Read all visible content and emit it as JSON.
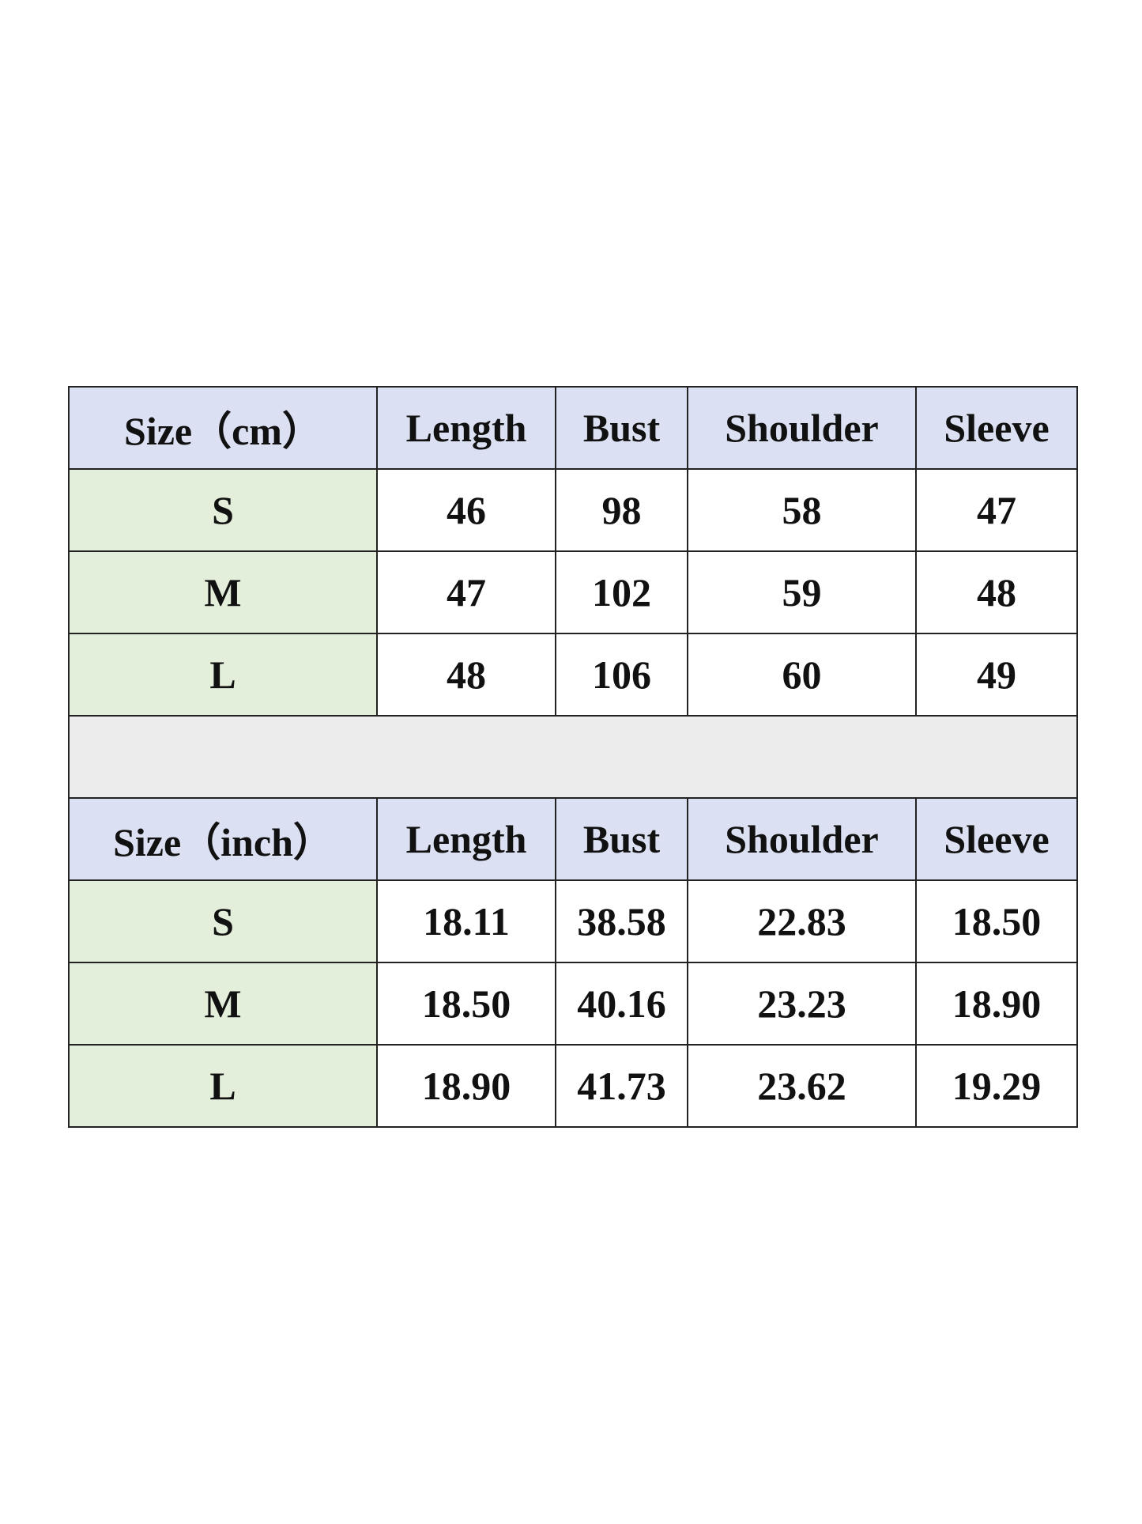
{
  "cm_table": {
    "headers": [
      "Size（cm）",
      "Length",
      "Bust",
      "Shoulder",
      "Sleeve"
    ],
    "rows": [
      [
        "S",
        "46",
        "98",
        "58",
        "47"
      ],
      [
        "M",
        "47",
        "102",
        "59",
        "48"
      ],
      [
        "L",
        "48",
        "106",
        "60",
        "49"
      ]
    ]
  },
  "inch_table": {
    "headers": [
      "Size（inch）",
      "Length",
      "Bust",
      "Shoulder",
      "Sleeve"
    ],
    "rows": [
      [
        "S",
        "18.11",
        "38.58",
        "22.83",
        "18.50"
      ],
      [
        "M",
        "18.50",
        "40.16",
        "23.23",
        "18.90"
      ],
      [
        "L",
        "18.90",
        "41.73",
        "23.62",
        "19.29"
      ]
    ]
  },
  "colors": {
    "header": "#dbe1f2",
    "size_column": "#e3eedb",
    "separator": "#ececec"
  }
}
